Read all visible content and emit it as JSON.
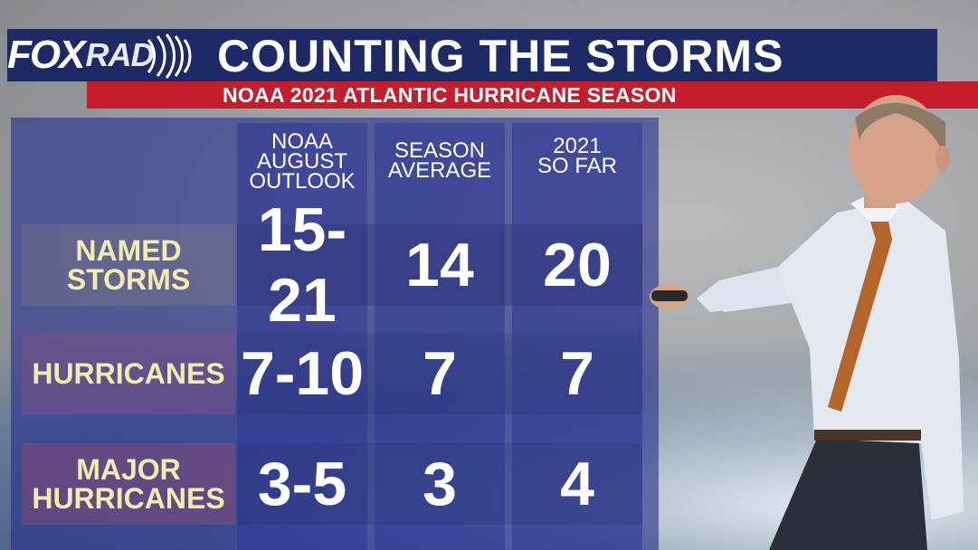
{
  "brand": {
    "logo_part1": "FOX",
    "logo_part2": "RAD"
  },
  "header": {
    "title": "COUNTING THE STORMS",
    "subtitle": "NOAA 2021 ATLANTIC HURRICANE SEASON"
  },
  "table": {
    "columns": [
      {
        "line1": "NOAA",
        "line2": "AUGUST",
        "line3": "OUTLOOK"
      },
      {
        "line1": "SEASON",
        "line2": "AVERAGE",
        "line3": ""
      },
      {
        "line1": "2021",
        "line2": "SO FAR",
        "line3": ""
      }
    ],
    "rows": [
      {
        "label1": "NAMED",
        "label2": "STORMS",
        "values": [
          "15-21",
          "14",
          "20"
        ]
      },
      {
        "label1": "HURRICANES",
        "label2": "",
        "values": [
          "7-10",
          "7",
          "7"
        ]
      },
      {
        "label1": "MAJOR",
        "label2": "HURRICANES",
        "values": [
          "3-5",
          "3",
          "4"
        ]
      }
    ]
  },
  "colors": {
    "title_bar": "#1d2a66",
    "subtitle_bar": "#c41e2e",
    "label_text": "#f3ecb0"
  }
}
